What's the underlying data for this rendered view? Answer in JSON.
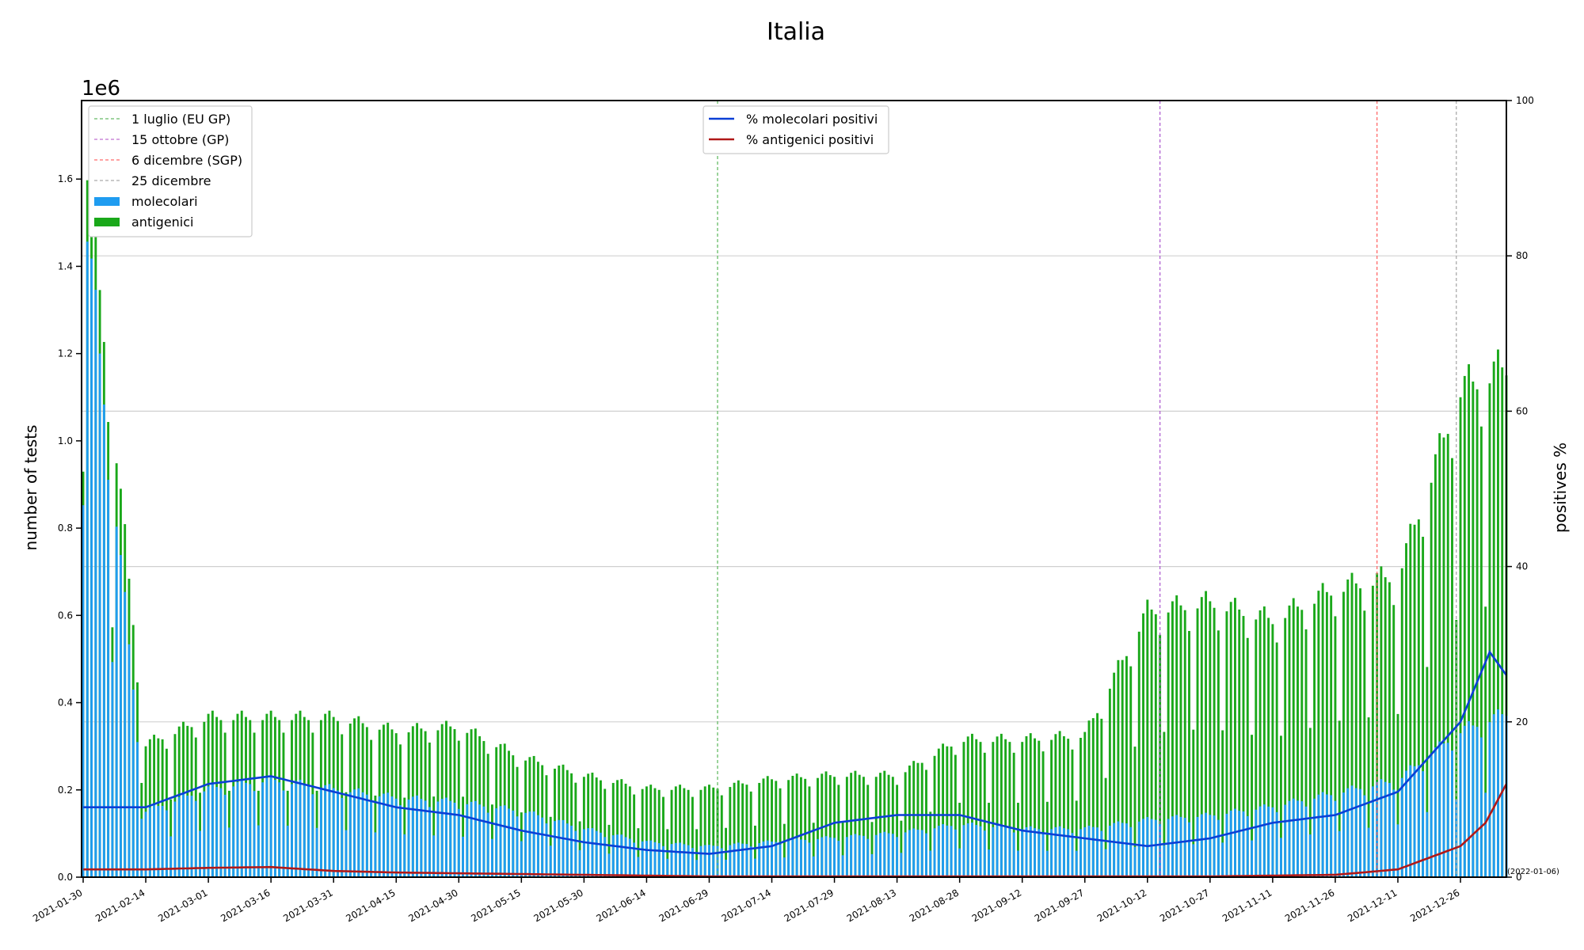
{
  "chart_data": {
    "type": "bar",
    "title": "Italia",
    "ylabel_left": "number of tests",
    "ylabel_right": "positives %",
    "y_offset_label": "1e6",
    "end_date_label": "(2022-01-06)",
    "start_date": "2021-01-30",
    "end_date": "2022-01-06",
    "xtick_labels": [
      "2021-01-30",
      "2021-02-14",
      "2021-03-01",
      "2021-03-16",
      "2021-03-31",
      "2021-04-15",
      "2021-04-30",
      "2021-05-15",
      "2021-05-30",
      "2021-06-14",
      "2021-06-29",
      "2021-07-14",
      "2021-07-29",
      "2021-08-13",
      "2021-08-28",
      "2021-09-12",
      "2021-09-27",
      "2021-10-12",
      "2021-10-27",
      "2021-11-11",
      "2021-11-26",
      "2021-12-11",
      "2021-12-26"
    ],
    "ylim_left": [
      0,
      1.78
    ],
    "yticks_left": [
      "0.0",
      "0.2",
      "0.4",
      "0.6",
      "0.8",
      "1.0",
      "1.2",
      "1.4",
      "1.6"
    ],
    "ylim_right": [
      0,
      100
    ],
    "yticks_right": [
      "0",
      "20",
      "40",
      "60",
      "80",
      "100"
    ],
    "grid": "horizontal (right axis)",
    "colors": {
      "molecolari": "#1f9cf0",
      "antigenici": "#1aa81a",
      "mol_pos": "#0b3fd6",
      "ant_pos": "#b01818",
      "vline_green": "#66bb66",
      "vline_purple": "#b060d0",
      "vline_red": "#ff6a6a",
      "vline_grey": "#aaaaaa"
    },
    "legend_left": {
      "placement": "top-left",
      "items": [
        {
          "label": "1 luglio (EU GP)",
          "kind": "dashed",
          "color": "#66bb66"
        },
        {
          "label": "15 ottobre (GP)",
          "kind": "dashed",
          "color": "#c070d0"
        },
        {
          "label": "6 dicembre (SGP)",
          "kind": "dashed",
          "color": "#ff6a6a"
        },
        {
          "label": "25 dicembre",
          "kind": "dashed",
          "color": "#aaaaaa"
        },
        {
          "label": "molecolari",
          "kind": "patch",
          "color": "#1f9cf0"
        },
        {
          "label": "antigenici",
          "kind": "patch",
          "color": "#1aa81a"
        }
      ]
    },
    "legend_right": {
      "placement": "top-center",
      "items": [
        {
          "label": "% molecolari positivi",
          "color": "#0b3fd6"
        },
        {
          "label": "% antigenici positivi",
          "color": "#b01818"
        }
      ]
    },
    "event_lines": [
      {
        "date": "2021-07-01",
        "color": "#66bb66"
      },
      {
        "date": "2021-10-15",
        "color": "#b060d0"
      },
      {
        "date": "2021-12-06",
        "color": "#ff6a6a"
      },
      {
        "date": "2021-12-25",
        "color": "#aaaaaa"
      }
    ],
    "series": [
      {
        "name": "molecolari",
        "axis": "left",
        "unit": "million tests",
        "points": [
          [
            "2021-01-30",
            1.55
          ],
          [
            "2021-02-14",
            0.15
          ],
          [
            "2021-03-01",
            0.2
          ],
          [
            "2021-03-16",
            0.22
          ],
          [
            "2021-03-31",
            0.2
          ],
          [
            "2021-04-15",
            0.18
          ],
          [
            "2021-04-30",
            0.17
          ],
          [
            "2021-05-15",
            0.15
          ],
          [
            "2021-05-30",
            0.11
          ],
          [
            "2021-06-14",
            0.08
          ],
          [
            "2021-06-29",
            0.07
          ],
          [
            "2021-07-14",
            0.08
          ],
          [
            "2021-07-29",
            0.09
          ],
          [
            "2021-08-13",
            0.1
          ],
          [
            "2021-08-28",
            0.12
          ],
          [
            "2021-09-12",
            0.11
          ],
          [
            "2021-09-27",
            0.11
          ],
          [
            "2021-10-12",
            0.13
          ],
          [
            "2021-10-27",
            0.14
          ],
          [
            "2021-11-11",
            0.16
          ],
          [
            "2021-11-26",
            0.19
          ],
          [
            "2021-12-11",
            0.22
          ],
          [
            "2021-12-26",
            0.33
          ],
          [
            "2022-01-06",
            0.37
          ]
        ]
      },
      {
        "name": "antigenici",
        "axis": "left",
        "unit": "million tests",
        "points": [
          [
            "2021-01-30",
            1.69
          ],
          [
            "2021-02-14",
            0.3
          ],
          [
            "2021-03-01",
            0.36
          ],
          [
            "2021-03-16",
            0.36
          ],
          [
            "2021-03-31",
            0.36
          ],
          [
            "2021-04-15",
            0.33
          ],
          [
            "2021-04-30",
            0.34
          ],
          [
            "2021-05-15",
            0.27
          ],
          [
            "2021-05-30",
            0.23
          ],
          [
            "2021-06-14",
            0.2
          ],
          [
            "2021-06-29",
            0.2
          ],
          [
            "2021-07-14",
            0.22
          ],
          [
            "2021-07-29",
            0.23
          ],
          [
            "2021-08-13",
            0.23
          ],
          [
            "2021-08-28",
            0.31
          ],
          [
            "2021-09-12",
            0.31
          ],
          [
            "2021-09-27",
            0.32
          ],
          [
            "2021-10-12",
            0.6
          ],
          [
            "2021-10-27",
            0.62
          ],
          [
            "2021-11-11",
            0.58
          ],
          [
            "2021-11-26",
            0.65
          ],
          [
            "2021-12-11",
            0.68
          ],
          [
            "2021-12-26",
            1.1
          ],
          [
            "2022-01-06",
            1.15
          ]
        ]
      },
      {
        "name": "% molecolari positivi",
        "axis": "right",
        "unit": "%",
        "points": [
          [
            "2021-01-30",
            9
          ],
          [
            "2021-02-14",
            9
          ],
          [
            "2021-03-01",
            12
          ],
          [
            "2021-03-16",
            13
          ],
          [
            "2021-03-31",
            11
          ],
          [
            "2021-04-15",
            9
          ],
          [
            "2021-04-30",
            8
          ],
          [
            "2021-05-15",
            6
          ],
          [
            "2021-05-30",
            4.5
          ],
          [
            "2021-06-14",
            3.5
          ],
          [
            "2021-06-29",
            3
          ],
          [
            "2021-07-14",
            4
          ],
          [
            "2021-07-29",
            7
          ],
          [
            "2021-08-13",
            8
          ],
          [
            "2021-08-28",
            8
          ],
          [
            "2021-09-12",
            6
          ],
          [
            "2021-09-27",
            5
          ],
          [
            "2021-10-12",
            4
          ],
          [
            "2021-10-27",
            5
          ],
          [
            "2021-11-11",
            7
          ],
          [
            "2021-11-26",
            8
          ],
          [
            "2021-12-11",
            11
          ],
          [
            "2021-12-26",
            20
          ],
          [
            "2022-01-02",
            29
          ],
          [
            "2022-01-06",
            26
          ]
        ]
      },
      {
        "name": "% antigenici positivi",
        "axis": "right",
        "unit": "%",
        "points": [
          [
            "2021-01-30",
            1
          ],
          [
            "2021-02-14",
            1
          ],
          [
            "2021-03-01",
            1.2
          ],
          [
            "2021-03-16",
            1.3
          ],
          [
            "2021-03-31",
            0.8
          ],
          [
            "2021-04-15",
            0.6
          ],
          [
            "2021-04-30",
            0.5
          ],
          [
            "2021-05-15",
            0.4
          ],
          [
            "2021-05-30",
            0.3
          ],
          [
            "2021-06-14",
            0.2
          ],
          [
            "2021-06-29",
            0.1
          ],
          [
            "2021-07-14",
            0.1
          ],
          [
            "2021-07-29",
            0.1
          ],
          [
            "2021-08-13",
            0.1
          ],
          [
            "2021-08-28",
            0.1
          ],
          [
            "2021-09-12",
            0.1
          ],
          [
            "2021-09-27",
            0.1
          ],
          [
            "2021-10-12",
            0.1
          ],
          [
            "2021-10-27",
            0.1
          ],
          [
            "2021-11-11",
            0.2
          ],
          [
            "2021-11-26",
            0.3
          ],
          [
            "2021-12-11",
            1
          ],
          [
            "2021-12-26",
            4
          ],
          [
            "2022-01-01",
            7
          ],
          [
            "2022-01-06",
            12
          ]
        ]
      }
    ]
  }
}
